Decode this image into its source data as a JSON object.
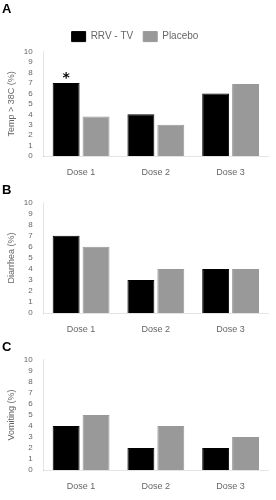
{
  "chart_data": [
    {
      "type": "bar",
      "title": "A",
      "categories": [
        "Dose 1",
        "Dose 2",
        "Dose 3"
      ],
      "series": [
        {
          "name": "RRV - TV",
          "color": "#000000",
          "values": [
            7.0,
            4.0,
            6.0
          ]
        },
        {
          "name": "Placebo",
          "color": "#999999",
          "values": [
            3.8,
            3.0,
            6.9
          ]
        }
      ],
      "ylabel": "Temp > 38C (%)",
      "ylim": [
        0,
        10
      ],
      "yticks": [
        0,
        1,
        2,
        3,
        4,
        5,
        6,
        7,
        8,
        9,
        10
      ],
      "grid": false,
      "legend": "top",
      "annotations": [
        {
          "text": "*",
          "category": "Dose 1",
          "series": "RRV - TV"
        }
      ]
    },
    {
      "type": "bar",
      "title": "B",
      "categories": [
        "Dose 1",
        "Dose 2",
        "Dose 3"
      ],
      "series": [
        {
          "name": "RRV - TV",
          "color": "#000000",
          "values": [
            7.0,
            3.0,
            4.0
          ]
        },
        {
          "name": "Placebo",
          "color": "#999999",
          "values": [
            6.0,
            4.0,
            4.0
          ]
        }
      ],
      "ylabel": "Diarrhea (%)",
      "ylim": [
        0,
        10
      ],
      "yticks": [
        0,
        1,
        2,
        3,
        4,
        5,
        6,
        7,
        8,
        9,
        10
      ],
      "grid": false
    },
    {
      "type": "bar",
      "title": "C",
      "categories": [
        "Dose 1",
        "Dose 2",
        "Dose 3"
      ],
      "series": [
        {
          "name": "RRV - TV",
          "color": "#000000",
          "values": [
            4.0,
            2.0,
            2.0
          ]
        },
        {
          "name": "Placebo",
          "color": "#999999",
          "values": [
            5.0,
            4.0,
            3.0
          ]
        }
      ],
      "ylabel": "Vomiting (%)",
      "ylim": [
        0,
        10
      ],
      "yticks": [
        0,
        1,
        2,
        3,
        4,
        5,
        6,
        7,
        8,
        9,
        10
      ],
      "grid": false
    }
  ]
}
